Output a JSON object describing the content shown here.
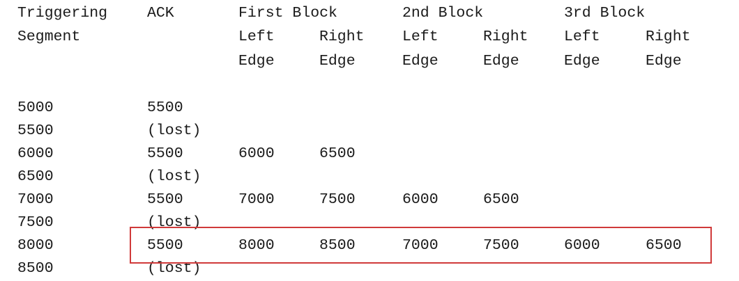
{
  "table": {
    "header_lines": [
      [
        "Triggering",
        "ACK",
        "First Block",
        "2nd Block",
        "3rd Block"
      ],
      [
        "Segment",
        "Left",
        "Right",
        "Left",
        "Right",
        "Left",
        "Right"
      ],
      [
        "Edge",
        "Edge",
        "Edge",
        "Edge",
        "Edge",
        "Edge"
      ]
    ],
    "rows": [
      [
        "5000",
        "5500"
      ],
      [
        "5500",
        "(lost)"
      ],
      [
        "6000",
        "5500",
        "6000",
        "6500"
      ],
      [
        "6500",
        "(lost)"
      ],
      [
        "7000",
        "5500",
        "7000",
        "7500",
        "6000",
        "6500"
      ],
      [
        "7500",
        "(lost)"
      ],
      [
        "8000",
        "5500",
        "8000",
        "8500",
        "7000",
        "7500",
        "6000",
        "6500"
      ],
      [
        "8500",
        "(lost)"
      ]
    ],
    "highlight": {
      "row_index": 6,
      "color": "#d03a3a"
    }
  }
}
